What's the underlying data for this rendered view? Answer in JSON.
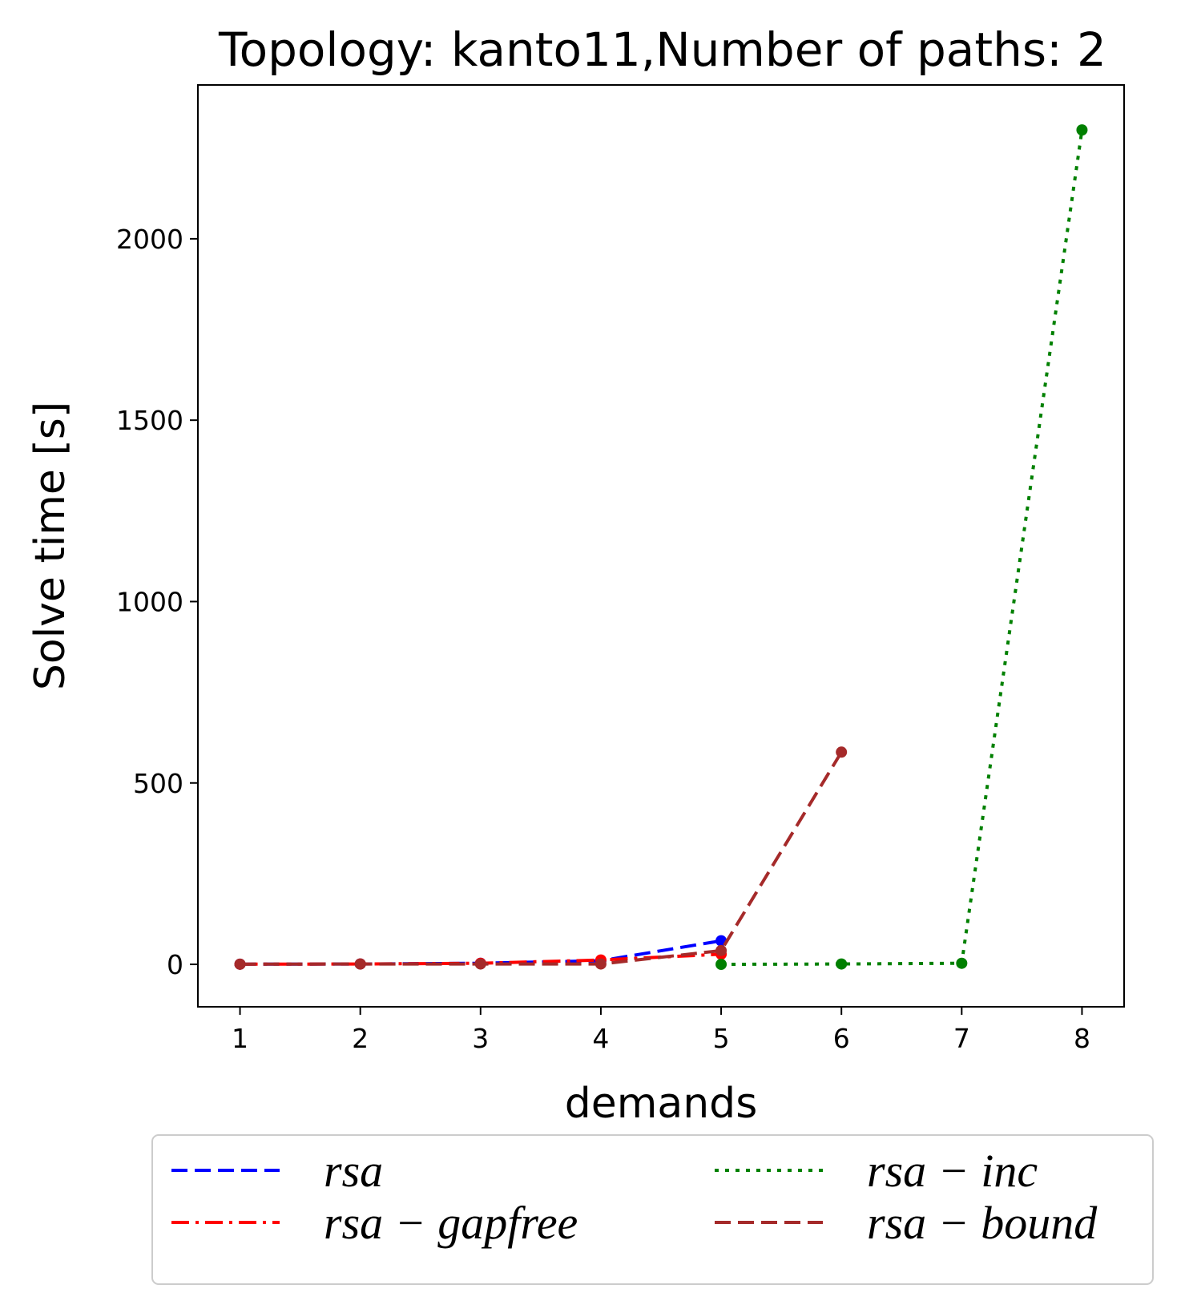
{
  "chart_data": {
    "type": "line",
    "title": "Topology: kanto11,Number of paths: 2",
    "xlabel": "demands",
    "ylabel": "Solve time [s]",
    "xlim": [
      0.65,
      8.35
    ],
    "ylim": [
      -117,
      2424
    ],
    "xticks": [
      1,
      2,
      3,
      4,
      5,
      6,
      7,
      8
    ],
    "yticks": [
      0,
      500,
      1000,
      1500,
      2000
    ],
    "grid": false,
    "legend_position": "bottom, outside plot, 2 columns",
    "series": [
      {
        "name": "rsa",
        "color": "#0000ff",
        "dash": "dashed",
        "x": [
          1,
          2,
          3,
          4,
          5
        ],
        "y": [
          0.5,
          1,
          3,
          10,
          65
        ]
      },
      {
        "name": "rsa − gapfree",
        "color": "#ff0000",
        "dash": "dashdot",
        "x": [
          1,
          2,
          3,
          4,
          5
        ],
        "y": [
          0.5,
          1,
          3,
          12,
          28
        ]
      },
      {
        "name": "rsa − inc",
        "color": "#008000",
        "dash": "dotted",
        "x": [
          5,
          6,
          7,
          8
        ],
        "y": [
          0,
          1,
          3,
          2300
        ]
      },
      {
        "name": "rsa − bound",
        "color": "#a52a2a",
        "dash": "dashed",
        "x": [
          1,
          2,
          3,
          4,
          5,
          6
        ],
        "y": [
          0.5,
          1,
          1,
          1,
          38,
          585
        ]
      }
    ]
  }
}
